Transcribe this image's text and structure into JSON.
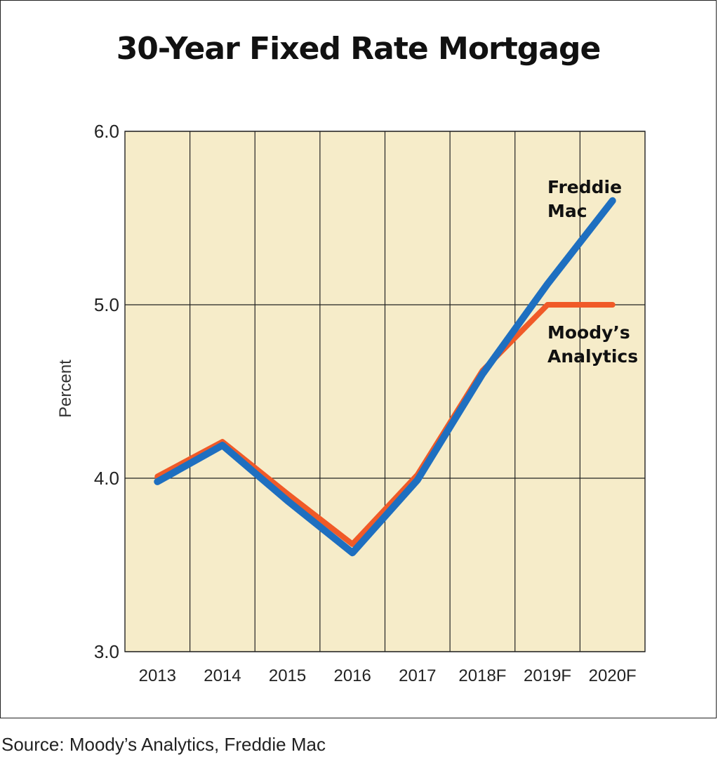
{
  "chart_data": {
    "type": "line",
    "title": "30-Year Fixed Rate Mortgage",
    "ylabel": "Percent",
    "xlabel": "",
    "categories": [
      "2013",
      "2014",
      "2015",
      "2016",
      "2017",
      "2018F",
      "2019F",
      "2020F"
    ],
    "ylim": [
      3.0,
      6.0
    ],
    "yticks": [
      "3.0",
      "4.0",
      "5.0",
      "6.0"
    ],
    "grid": true,
    "series": [
      {
        "name": "Moody’s Analytics",
        "label_lines": [
          "Moody’s",
          "Analytics"
        ],
        "color": "#f05a28",
        "values": [
          4.01,
          4.21,
          3.91,
          3.62,
          4.02,
          4.62,
          5.0,
          5.0
        ]
      },
      {
        "name": "Freddie Mac",
        "label_lines": [
          "Freddie",
          "Mac"
        ],
        "color": "#1e6fc0",
        "values": [
          3.98,
          4.19,
          3.87,
          3.57,
          3.99,
          4.6,
          5.12,
          5.6
        ]
      }
    ],
    "plot_background": "#f6ecc9"
  },
  "source": "Source: Moody’s Analytics, Freddie Mac"
}
